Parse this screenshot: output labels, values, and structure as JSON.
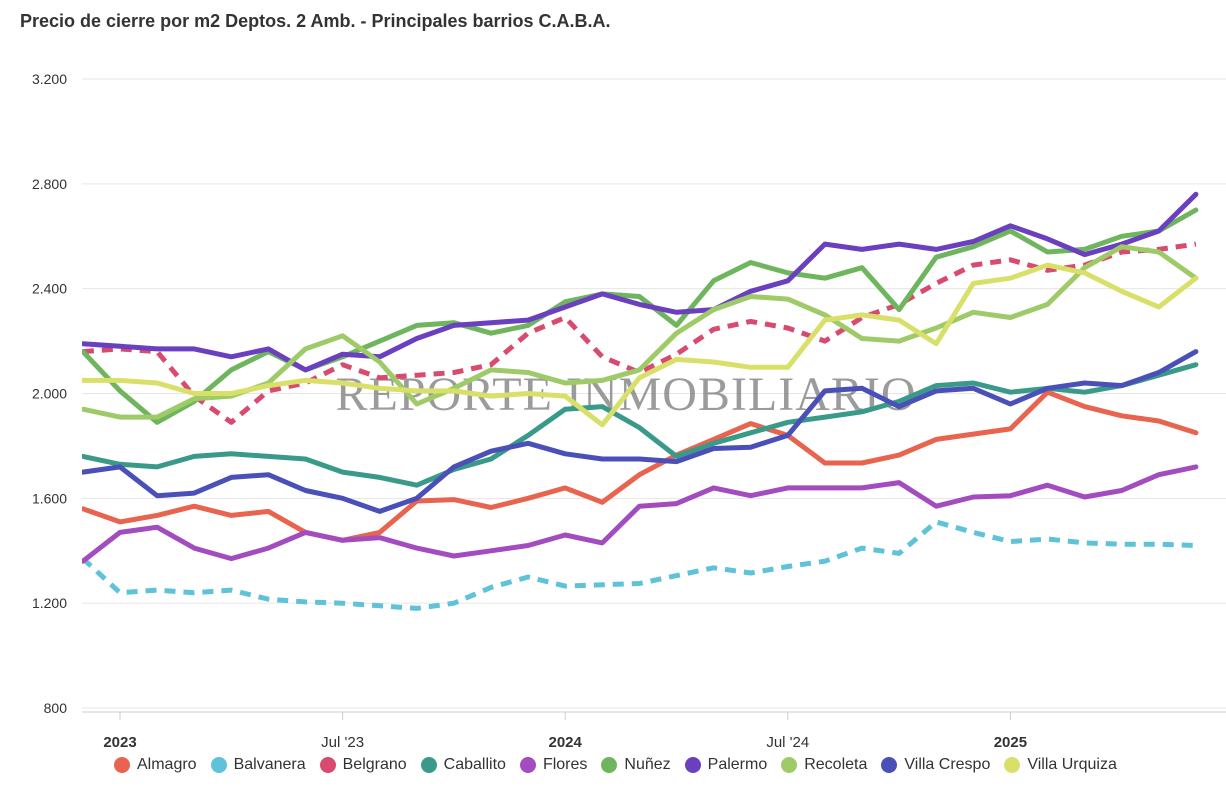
{
  "colors": {
    "Almagro": "#e8644f",
    "Balvanera": "#5ec2d8",
    "Belgrano": "#d94a6f",
    "Caballito": "#3a9a8a",
    "Flores": "#a34cbf",
    "Nuñez": "#6eb55e",
    "Palermo": "#6a3fc0",
    "Recoleta": "#9ecb68",
    "Villa Crespo": "#4a50b8",
    "Villa Urquiza": "#d8e06a",
    "watermark": "#7a7a7a",
    "grid": "#e6e6e6",
    "axis_text": "#333333"
  },
  "chart_data": {
    "type": "line",
    "title": "Precio de cierre por m2 Deptos. 2 Amb. - Principales barrios C.A.B.A.",
    "watermark": "REPORTE INMOBILIARIO",
    "xlabel": "",
    "ylabel": "",
    "ylim": [
      800,
      3200
    ],
    "yticks": [
      800,
      1200,
      1600,
      2000,
      2400,
      2800,
      3200
    ],
    "ytick_labels": [
      "800",
      "1.200",
      "1.600",
      "2.000",
      "2.400",
      "2.800",
      "3.200"
    ],
    "x_range_months": [
      -1.5,
      29.3
    ],
    "x": [
      -1,
      0,
      1,
      2,
      3,
      4,
      5,
      6,
      7,
      8,
      9,
      10,
      11,
      12,
      13,
      14,
      15,
      16,
      17,
      18,
      19,
      20,
      21,
      22,
      23,
      24,
      25,
      26,
      27,
      28,
      29
    ],
    "xticks": [
      {
        "month": 0,
        "label": "2023",
        "bold": true
      },
      {
        "month": 6,
        "label": "Jul '23",
        "bold": false
      },
      {
        "month": 12,
        "label": "2024",
        "bold": true
      },
      {
        "month": 18,
        "label": "Jul '24",
        "bold": false
      },
      {
        "month": 24,
        "label": "2025",
        "bold": true
      }
    ],
    "legend_position": "bottom",
    "grid": true,
    "series": [
      {
        "name": "Almagro",
        "dashed": false,
        "values": [
          1560,
          1510,
          1535,
          1570,
          1535,
          1550,
          1470,
          1440,
          1470,
          1590,
          1595,
          1565,
          1600,
          1640,
          1585,
          1690,
          1765,
          1825,
          1885,
          1840,
          1735,
          1735,
          1765,
          1825,
          1845,
          1865,
          2005,
          1950,
          1915,
          1895,
          1850
        ]
      },
      {
        "name": "Balvanera",
        "dashed": true,
        "values": [
          1370,
          1240,
          1250,
          1240,
          1250,
          1215,
          1205,
          1200,
          1190,
          1180,
          1200,
          1260,
          1300,
          1265,
          1270,
          1275,
          1305,
          1335,
          1315,
          1340,
          1360,
          1410,
          1390,
          1510,
          1470,
          1435,
          1445,
          1430,
          1425,
          1425,
          1420
        ]
      },
      {
        "name": "Belgrano",
        "dashed": true,
        "values": [
          2160,
          2170,
          2160,
          1990,
          1890,
          2010,
          2040,
          2110,
          2060,
          2070,
          2080,
          2110,
          2230,
          2290,
          2140,
          2080,
          2150,
          2245,
          2275,
          2250,
          2200,
          2290,
          2340,
          2420,
          2490,
          2510,
          2470,
          2490,
          2540,
          2550,
          2570
        ]
      },
      {
        "name": "Caballito",
        "dashed": false,
        "values": [
          1760,
          1730,
          1720,
          1760,
          1770,
          1760,
          1750,
          1700,
          1680,
          1650,
          1710,
          1750,
          1840,
          1940,
          1950,
          1870,
          1760,
          1810,
          1850,
          1890,
          1910,
          1930,
          1970,
          2030,
          2040,
          2005,
          2020,
          2005,
          2030,
          2070,
          2110
        ]
      },
      {
        "name": "Flores",
        "dashed": false,
        "values": [
          1360,
          1470,
          1490,
          1410,
          1370,
          1410,
          1470,
          1440,
          1450,
          1410,
          1380,
          1400,
          1420,
          1460,
          1430,
          1570,
          1580,
          1640,
          1610,
          1640,
          1640,
          1640,
          1660,
          1570,
          1605,
          1610,
          1650,
          1605,
          1630,
          1690,
          1720
        ]
      },
      {
        "name": "Nuñez",
        "dashed": false,
        "values": [
          2160,
          2010,
          1890,
          1970,
          2090,
          2160,
          2090,
          2140,
          2200,
          2260,
          2270,
          2230,
          2260,
          2350,
          2380,
          2370,
          2260,
          2430,
          2500,
          2460,
          2440,
          2480,
          2320,
          2520,
          2560,
          2620,
          2540,
          2550,
          2600,
          2620,
          2700
        ]
      },
      {
        "name": "Palermo",
        "dashed": false,
        "values": [
          2190,
          2180,
          2170,
          2170,
          2140,
          2170,
          2090,
          2150,
          2140,
          2210,
          2260,
          2270,
          2280,
          2330,
          2380,
          2340,
          2310,
          2320,
          2390,
          2430,
          2570,
          2550,
          2570,
          2550,
          2580,
          2640,
          2590,
          2530,
          2570,
          2620,
          2760
        ]
      },
      {
        "name": "Recoleta",
        "dashed": false,
        "values": [
          1940,
          1910,
          1910,
          1980,
          1990,
          2040,
          2170,
          2220,
          2120,
          1960,
          2020,
          2090,
          2080,
          2040,
          2050,
          2090,
          2230,
          2320,
          2370,
          2360,
          2300,
          2210,
          2200,
          2250,
          2310,
          2290,
          2340,
          2480,
          2560,
          2540,
          2440
        ]
      },
      {
        "name": "Villa Crespo",
        "dashed": false,
        "values": [
          1700,
          1720,
          1610,
          1620,
          1680,
          1690,
          1630,
          1600,
          1550,
          1600,
          1720,
          1780,
          1810,
          1770,
          1750,
          1750,
          1740,
          1790,
          1795,
          1840,
          2010,
          2020,
          1950,
          2010,
          2020,
          1960,
          2020,
          2040,
          2030,
          2080,
          2160
        ]
      },
      {
        "name": "Villa Urquiza",
        "dashed": false,
        "values": [
          2050,
          2050,
          2040,
          2000,
          2000,
          2030,
          2050,
          2040,
          2020,
          2010,
          2010,
          1990,
          2000,
          1990,
          1880,
          2060,
          2130,
          2120,
          2100,
          2100,
          2280,
          2300,
          2280,
          2190,
          2420,
          2440,
          2490,
          2460,
          2390,
          2330,
          2440
        ]
      }
    ]
  }
}
